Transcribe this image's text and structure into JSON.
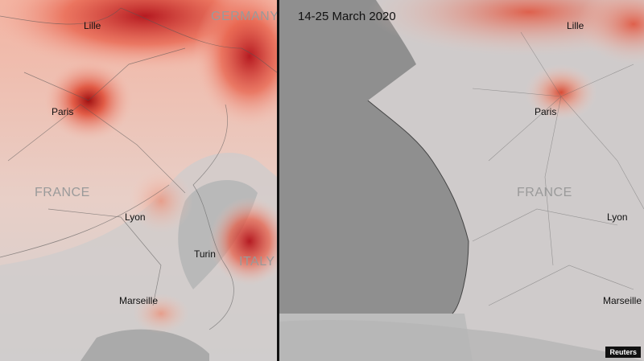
{
  "left_panel": {
    "cities": {
      "lille": "Lille",
      "paris": "Paris",
      "lyon": "Lyon",
      "turin": "Turin",
      "marseille": "Marseille"
    },
    "countries": {
      "germany": "GERMANY",
      "france": "FRANCE",
      "italy": "ITALY"
    }
  },
  "right_panel": {
    "date_range": "14-25 March 2020",
    "cities": {
      "lille": "Lille",
      "paris": "Paris",
      "lyon": "Lyon",
      "marseille": "Marseille"
    },
    "countries": {
      "france": "FRANCE"
    }
  },
  "credit": "Reuters",
  "colors": {
    "pollution_high": "#c0171a",
    "pollution_mid": "#e8604a",
    "pollution_low": "#f2b7a8",
    "land": "#c9c9c9",
    "sea": "#8f8f8f",
    "divider": "#111111"
  }
}
